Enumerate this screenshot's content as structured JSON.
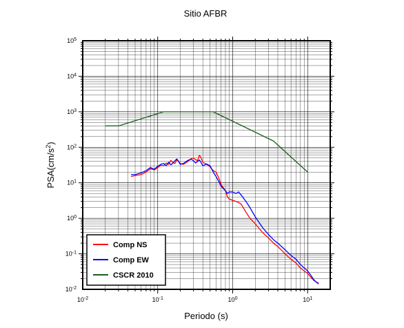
{
  "chart_data": {
    "type": "line",
    "title": "Sitio AFBR",
    "xlabel": "Periodo (s)",
    "ylabel": {
      "base": "PSA(cm/s",
      "sup": "2",
      "close": ")"
    },
    "xscale": "log",
    "yscale": "log",
    "xlim": [
      0.01,
      20
    ],
    "ylim": [
      0.01,
      100000
    ],
    "grid": true,
    "legend_position": "bottom-left",
    "x_ticks": [
      {
        "value": 0.01,
        "base": "10",
        "exp": "-2"
      },
      {
        "value": 0.1,
        "base": "10",
        "exp": "-1"
      },
      {
        "value": 1,
        "base": "10",
        "exp": "0"
      },
      {
        "value": 10,
        "base": "10",
        "exp": "1"
      }
    ],
    "y_ticks": [
      {
        "value": 0.01,
        "base": "10",
        "exp": "-2"
      },
      {
        "value": 0.1,
        "base": "10",
        "exp": "-1"
      },
      {
        "value": 1,
        "base": "10",
        "exp": "0"
      },
      {
        "value": 10,
        "base": "10",
        "exp": "1"
      },
      {
        "value": 100,
        "base": "10",
        "exp": "2"
      },
      {
        "value": 1000,
        "base": "10",
        "exp": "3"
      },
      {
        "value": 10000,
        "base": "10",
        "exp": "4"
      },
      {
        "value": 100000,
        "base": "10",
        "exp": "5"
      }
    ],
    "series": [
      {
        "name": "Comp NS",
        "color": "#ff0000",
        "points": [
          [
            0.044,
            15
          ],
          [
            0.05,
            16
          ],
          [
            0.06,
            17
          ],
          [
            0.07,
            20
          ],
          [
            0.08,
            25
          ],
          [
            0.09,
            23
          ],
          [
            0.1,
            27
          ],
          [
            0.11,
            31
          ],
          [
            0.12,
            30
          ],
          [
            0.13,
            36
          ],
          [
            0.14,
            33
          ],
          [
            0.15,
            43
          ],
          [
            0.16,
            37
          ],
          [
            0.17,
            35
          ],
          [
            0.18,
            45
          ],
          [
            0.19,
            40
          ],
          [
            0.2,
            35
          ],
          [
            0.22,
            33
          ],
          [
            0.24,
            37
          ],
          [
            0.26,
            42
          ],
          [
            0.28,
            48
          ],
          [
            0.3,
            50
          ],
          [
            0.32,
            45
          ],
          [
            0.34,
            42
          ],
          [
            0.36,
            60
          ],
          [
            0.38,
            50
          ],
          [
            0.4,
            38
          ],
          [
            0.45,
            33
          ],
          [
            0.5,
            28
          ],
          [
            0.55,
            22
          ],
          [
            0.6,
            20
          ],
          [
            0.65,
            14
          ],
          [
            0.7,
            9
          ],
          [
            0.8,
            6
          ],
          [
            0.85,
            4
          ],
          [
            0.9,
            3.5
          ],
          [
            1.0,
            3.2
          ],
          [
            1.1,
            3.0
          ],
          [
            1.2,
            2.8
          ],
          [
            1.3,
            2.5
          ],
          [
            1.5,
            1.5
          ],
          [
            1.7,
            1.0
          ],
          [
            2.0,
            0.7
          ],
          [
            2.5,
            0.4
          ],
          [
            3.0,
            0.28
          ],
          [
            3.5,
            0.2
          ],
          [
            4.0,
            0.16
          ],
          [
            5.0,
            0.1
          ],
          [
            6.0,
            0.07
          ],
          [
            7.0,
            0.055
          ],
          [
            8.0,
            0.04
          ],
          [
            9.0,
            0.033
          ],
          [
            10.0,
            0.028
          ],
          [
            11.0,
            0.022
          ],
          [
            12.0,
            0.018
          ],
          [
            13.0,
            0.016
          ],
          [
            14.0,
            0.014
          ]
        ]
      },
      {
        "name": "Comp EW",
        "color": "#0000ff",
        "points": [
          [
            0.044,
            17
          ],
          [
            0.05,
            17
          ],
          [
            0.06,
            19
          ],
          [
            0.07,
            22
          ],
          [
            0.08,
            27
          ],
          [
            0.09,
            24
          ],
          [
            0.1,
            29
          ],
          [
            0.11,
            33
          ],
          [
            0.12,
            35
          ],
          [
            0.13,
            30
          ],
          [
            0.14,
            38
          ],
          [
            0.15,
            32
          ],
          [
            0.16,
            36
          ],
          [
            0.17,
            42
          ],
          [
            0.18,
            47
          ],
          [
            0.19,
            40
          ],
          [
            0.2,
            33
          ],
          [
            0.22,
            35
          ],
          [
            0.24,
            40
          ],
          [
            0.26,
            44
          ],
          [
            0.28,
            46
          ],
          [
            0.3,
            42
          ],
          [
            0.32,
            36
          ],
          [
            0.34,
            40
          ],
          [
            0.36,
            44
          ],
          [
            0.38,
            37
          ],
          [
            0.4,
            30
          ],
          [
            0.45,
            34
          ],
          [
            0.5,
            30
          ],
          [
            0.55,
            20
          ],
          [
            0.6,
            15
          ],
          [
            0.65,
            11
          ],
          [
            0.7,
            8
          ],
          [
            0.8,
            6
          ],
          [
            0.85,
            5
          ],
          [
            0.9,
            5.5
          ],
          [
            1.0,
            5.5
          ],
          [
            1.1,
            5
          ],
          [
            1.2,
            5.5
          ],
          [
            1.3,
            4.5
          ],
          [
            1.5,
            3
          ],
          [
            1.7,
            2.0
          ],
          [
            2.0,
            1.1
          ],
          [
            2.5,
            0.55
          ],
          [
            3.0,
            0.35
          ],
          [
            3.5,
            0.25
          ],
          [
            4.0,
            0.2
          ],
          [
            5.0,
            0.13
          ],
          [
            6.0,
            0.09
          ],
          [
            7.0,
            0.07
          ],
          [
            8.0,
            0.05
          ],
          [
            9.0,
            0.04
          ],
          [
            10.0,
            0.033
          ],
          [
            11.0,
            0.025
          ],
          [
            12.0,
            0.019
          ],
          [
            13.0,
            0.016
          ],
          [
            14.0,
            0.015
          ]
        ]
      },
      {
        "name": "CSCR 2010",
        "color": "#1a5e1a",
        "points": [
          [
            0.02,
            400
          ],
          [
            0.03,
            400
          ],
          [
            0.12,
            1000
          ],
          [
            0.55,
            1000
          ],
          [
            3.5,
            150
          ],
          [
            10.0,
            20
          ]
        ]
      }
    ]
  }
}
